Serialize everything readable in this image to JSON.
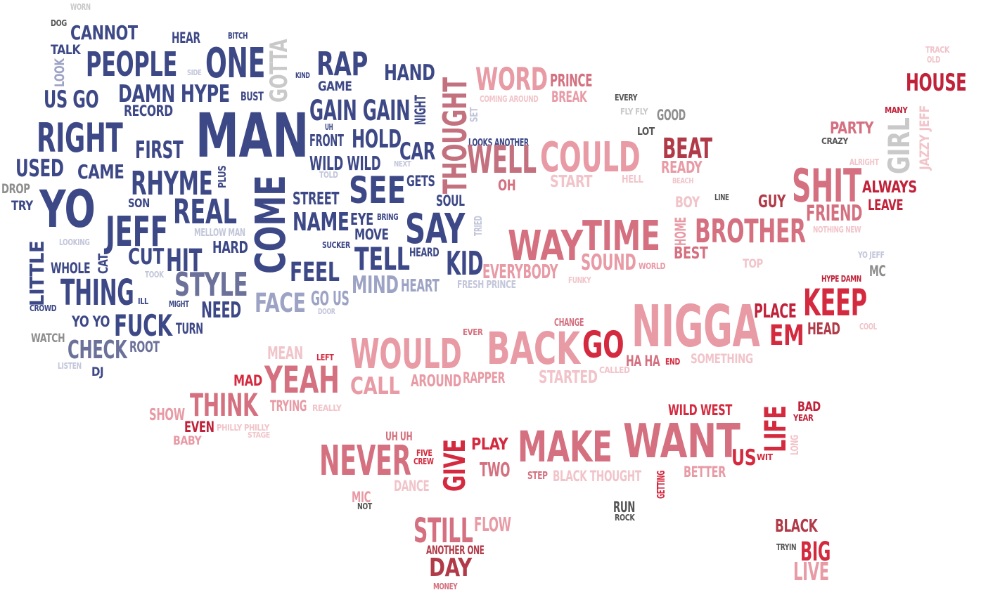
{
  "colors": {
    "navy": "#3d4886",
    "navy2": "#4a5590",
    "slate": "#6b7199",
    "lavender": "#9da3c4",
    "palelav": "#c3c6da",
    "gray": "#8e8e8e",
    "lightgray": "#c9c9c9",
    "darkgray": "#555555",
    "pink": "#e89aa5",
    "pink2": "#eaa3ad",
    "palepink": "#f1c4ca",
    "rose": "#d4707f",
    "mauve": "#c4717f",
    "red": "#d42a3f",
    "crimson": "#c0223a",
    "brick": "#b13a48"
  },
  "words": [
    {
      "text": "WORN",
      "c": "lightgray"
    },
    {
      "text": "DOG",
      "c": "darkgray"
    },
    {
      "text": "CANNOT",
      "c": "navy"
    },
    {
      "text": "TALK",
      "c": "navy"
    },
    {
      "text": "PEOPLE",
      "c": "navy"
    },
    {
      "text": "LOOK",
      "c": "lavender"
    },
    {
      "text": "US GO",
      "c": "navy"
    },
    {
      "text": "HEAR",
      "c": "navy"
    },
    {
      "text": "BITCH",
      "c": "navy"
    },
    {
      "text": "ONE",
      "c": "navy"
    },
    {
      "text": "GOTTA",
      "c": "lightgray"
    },
    {
      "text": "SIDE",
      "c": "palelav"
    },
    {
      "text": "KIND",
      "c": "navy"
    },
    {
      "text": "RAP",
      "c": "navy"
    },
    {
      "text": "GAME",
      "c": "navy"
    },
    {
      "text": "HAND",
      "c": "navy"
    },
    {
      "text": "DAMN HYPE",
      "c": "navy"
    },
    {
      "text": "BUST",
      "c": "navy"
    },
    {
      "text": "RECORD",
      "c": "navy"
    },
    {
      "text": "RIGHT",
      "c": "navy"
    },
    {
      "text": "MAN",
      "c": "navy"
    },
    {
      "text": "GAIN GAIN",
      "c": "navy"
    },
    {
      "text": "NIGHT",
      "c": "navy"
    },
    {
      "text": "THOUGHT",
      "c": "mauve"
    },
    {
      "text": "SET",
      "c": "palelav"
    },
    {
      "text": "WORD",
      "c": "pink"
    },
    {
      "text": "COMING AROUND",
      "c": "palepink"
    },
    {
      "text": "PRINCE",
      "c": "rose"
    },
    {
      "text": "BREAK",
      "c": "pink"
    },
    {
      "text": "EVERY",
      "c": "darkgray"
    },
    {
      "text": "FLY FLY",
      "c": "lightgray"
    },
    {
      "text": "GOOD",
      "c": "gray"
    },
    {
      "text": "TRACK",
      "c": "palepink"
    },
    {
      "text": "OLD",
      "c": "palepink"
    },
    {
      "text": "HOUSE",
      "c": "crimson"
    },
    {
      "text": "MANY",
      "c": "crimson"
    },
    {
      "text": "JAZZY JEFF",
      "c": "palepink"
    },
    {
      "text": "PARTY",
      "c": "rose"
    },
    {
      "text": "CRAZY",
      "c": "darkgray"
    },
    {
      "text": "GIRL",
      "c": "lightgray"
    },
    {
      "text": "ALRIGHT",
      "c": "palepink"
    },
    {
      "text": "FIRST",
      "c": "navy"
    },
    {
      "text": "UH",
      "c": "navy"
    },
    {
      "text": "FRONT",
      "c": "navy"
    },
    {
      "text": "HOLD",
      "c": "navy"
    },
    {
      "text": "LOOKS ANOTHER",
      "c": "navy"
    },
    {
      "text": "LOT",
      "c": "darkgray"
    },
    {
      "text": "USED",
      "c": "navy"
    },
    {
      "text": "CAME",
      "c": "navy"
    },
    {
      "text": "WILD WILD",
      "c": "navy"
    },
    {
      "text": "TOLD",
      "c": "palelav"
    },
    {
      "text": "CAR",
      "c": "navy"
    },
    {
      "text": "NEXT",
      "c": "palelav"
    },
    {
      "text": "WELL",
      "c": "mauve"
    },
    {
      "text": "COULD",
      "c": "pink"
    },
    {
      "text": "BEAT",
      "c": "brick"
    },
    {
      "text": "READY",
      "c": "pink"
    },
    {
      "text": "DROP",
      "c": "gray"
    },
    {
      "text": "TRY",
      "c": "navy"
    },
    {
      "text": "YO",
      "c": "navy"
    },
    {
      "text": "RHYME",
      "c": "navy"
    },
    {
      "text": "PLUS",
      "c": "navy"
    },
    {
      "text": "COME",
      "c": "navy"
    },
    {
      "text": "SEE",
      "c": "navy"
    },
    {
      "text": "GETS",
      "c": "navy"
    },
    {
      "text": "OH",
      "c": "rose"
    },
    {
      "text": "START",
      "c": "palepink"
    },
    {
      "text": "HELL",
      "c": "palepink"
    },
    {
      "text": "BEACH",
      "c": "palepink"
    },
    {
      "text": "SHIT",
      "c": "rose"
    },
    {
      "text": "ALWAYS",
      "c": "crimson"
    },
    {
      "text": "SON",
      "c": "navy"
    },
    {
      "text": "REAL",
      "c": "navy"
    },
    {
      "text": "STREET",
      "c": "navy"
    },
    {
      "text": "SOUL",
      "c": "navy"
    },
    {
      "text": "BOY",
      "c": "palepink"
    },
    {
      "text": "LINE",
      "c": "darkgray"
    },
    {
      "text": "GUY",
      "c": "brick"
    },
    {
      "text": "LEAVE",
      "c": "crimson"
    },
    {
      "text": "FRIEND",
      "c": "rose"
    },
    {
      "text": "JEFF",
      "c": "navy"
    },
    {
      "text": "MELLOW MAN",
      "c": "palelav"
    },
    {
      "text": "NAME",
      "c": "navy"
    },
    {
      "text": "EYE",
      "c": "navy"
    },
    {
      "text": "BRING",
      "c": "navy"
    },
    {
      "text": "SAY",
      "c": "navy"
    },
    {
      "text": "TRIED",
      "c": "palelav"
    },
    {
      "text": "HOME",
      "c": "pink"
    },
    {
      "text": "BROTHER",
      "c": "rose"
    },
    {
      "text": "NOTHING NEW",
      "c": "palepink"
    },
    {
      "text": "LITTLE",
      "c": "navy"
    },
    {
      "text": "LOOKING",
      "c": "palelav"
    },
    {
      "text": "CAT",
      "c": "navy"
    },
    {
      "text": "HARD",
      "c": "navy"
    },
    {
      "text": "MOVE",
      "c": "navy"
    },
    {
      "text": "SUCKER",
      "c": "navy"
    },
    {
      "text": "WAY",
      "c": "rose"
    },
    {
      "text": "TIME",
      "c": "rose"
    },
    {
      "text": "BEST",
      "c": "rose"
    },
    {
      "text": "WHOLE",
      "c": "navy"
    },
    {
      "text": "CUT",
      "c": "navy"
    },
    {
      "text": "HIT",
      "c": "navy"
    },
    {
      "text": "TOOK",
      "c": "palelav"
    },
    {
      "text": "FEEL",
      "c": "navy"
    },
    {
      "text": "TELL",
      "c": "navy"
    },
    {
      "text": "HEARD",
      "c": "navy"
    },
    {
      "text": "KID",
      "c": "navy"
    },
    {
      "text": "EVERYBODY",
      "c": "pink"
    },
    {
      "text": "SOUND",
      "c": "pink"
    },
    {
      "text": "WORLD",
      "c": "pink"
    },
    {
      "text": "TOP",
      "c": "palepink"
    },
    {
      "text": "YO JEFF",
      "c": "palelav"
    },
    {
      "text": "MC",
      "c": "gray"
    },
    {
      "text": "THING",
      "c": "navy"
    },
    {
      "text": "STYLE",
      "c": "slate"
    },
    {
      "text": "MIND",
      "c": "lavender"
    },
    {
      "text": "HEART",
      "c": "lavender"
    },
    {
      "text": "FRESH PRINCE",
      "c": "palelav"
    },
    {
      "text": "FUNKY",
      "c": "palepink"
    },
    {
      "text": "HYPE DAMN",
      "c": "crimson"
    },
    {
      "text": "CROWD",
      "c": "navy"
    },
    {
      "text": "ILL",
      "c": "navy"
    },
    {
      "text": "MIGHT",
      "c": "navy"
    },
    {
      "text": "NEED",
      "c": "navy"
    },
    {
      "text": "FACE",
      "c": "lavender"
    },
    {
      "text": "GO US",
      "c": "lavender"
    },
    {
      "text": "DOOR",
      "c": "palelav"
    },
    {
      "text": "KEEP",
      "c": "red"
    },
    {
      "text": "PLACE",
      "c": "crimson"
    },
    {
      "text": "NIGGA",
      "c": "pink"
    },
    {
      "text": "YO YO",
      "c": "navy"
    },
    {
      "text": "FUCK",
      "c": "navy"
    },
    {
      "text": "TURN",
      "c": "navy"
    },
    {
      "text": "CHANGE",
      "c": "rose"
    },
    {
      "text": "EM",
      "c": "red"
    },
    {
      "text": "HEAD",
      "c": "brick"
    },
    {
      "text": "COOL",
      "c": "palepink"
    },
    {
      "text": "WATCH",
      "c": "gray"
    },
    {
      "text": "EVER",
      "c": "rose"
    },
    {
      "text": "CHECK",
      "c": "slate"
    },
    {
      "text": "ROOT",
      "c": "slate"
    },
    {
      "text": "MEAN",
      "c": "palepink"
    },
    {
      "text": "BACK",
      "c": "pink"
    },
    {
      "text": "GO",
      "c": "red"
    },
    {
      "text": "LISTEN",
      "c": "palelav"
    },
    {
      "text": "LEFT",
      "c": "red"
    },
    {
      "text": "WOULD",
      "c": "pink"
    },
    {
      "text": "HA HA",
      "c": "rose"
    },
    {
      "text": "END",
      "c": "red"
    },
    {
      "text": "SOMETHING",
      "c": "palepink"
    },
    {
      "text": "DJ",
      "c": "navy"
    },
    {
      "text": "CALLED",
      "c": "palepink"
    },
    {
      "text": "MAD",
      "c": "red"
    },
    {
      "text": "YEAH",
      "c": "rose"
    },
    {
      "text": "CALL",
      "c": "pink"
    },
    {
      "text": "AROUND",
      "c": "pink"
    },
    {
      "text": "RAPPER",
      "c": "pink"
    },
    {
      "text": "STARTED",
      "c": "palepink"
    },
    {
      "text": "THINK",
      "c": "rose"
    },
    {
      "text": "TRYING",
      "c": "pink"
    },
    {
      "text": "REALLY",
      "c": "palepink"
    },
    {
      "text": "WILD WEST",
      "c": "red"
    },
    {
      "text": "BAD",
      "c": "crimson"
    },
    {
      "text": "YEAR",
      "c": "crimson"
    },
    {
      "text": "LIFE",
      "c": "red"
    },
    {
      "text": "SHOW",
      "c": "pink"
    },
    {
      "text": "EVEN",
      "c": "crimson"
    },
    {
      "text": "PHILLY PHILLY",
      "c": "palepink"
    },
    {
      "text": "STAGE",
      "c": "palepink"
    },
    {
      "text": "BABY",
      "c": "pink"
    },
    {
      "text": "UH UH",
      "c": "rose"
    },
    {
      "text": "WANT",
      "c": "rose"
    },
    {
      "text": "MAKE",
      "c": "rose"
    },
    {
      "text": "LONG",
      "c": "palepink"
    },
    {
      "text": "FIVE",
      "c": "red"
    },
    {
      "text": "CREW",
      "c": "red"
    },
    {
      "text": "PLAY",
      "c": "red"
    },
    {
      "text": "NEVER",
      "c": "rose"
    },
    {
      "text": "GIVE",
      "c": "red"
    },
    {
      "text": "US",
      "c": "red"
    },
    {
      "text": "WIT",
      "c": "red"
    },
    {
      "text": "TWO",
      "c": "rose"
    },
    {
      "text": "STEP",
      "c": "rose"
    },
    {
      "text": "BLACK THOUGHT",
      "c": "palepink"
    },
    {
      "text": "BETTER",
      "c": "pink"
    },
    {
      "text": "GETTING",
      "c": "red"
    },
    {
      "text": "DANCE",
      "c": "palepink"
    },
    {
      "text": "MIC",
      "c": "pink"
    },
    {
      "text": "NOT",
      "c": "darkgray"
    },
    {
      "text": "RUN",
      "c": "darkgray"
    },
    {
      "text": "ROCK",
      "c": "darkgray"
    },
    {
      "text": "STILL",
      "c": "rose"
    },
    {
      "text": "FLOW",
      "c": "pink"
    },
    {
      "text": "BLACK",
      "c": "brick"
    },
    {
      "text": "ANOTHER ONE",
      "c": "brick"
    },
    {
      "text": "TRYIN",
      "c": "darkgray"
    },
    {
      "text": "BIG",
      "c": "red"
    },
    {
      "text": "DAY",
      "c": "brick"
    },
    {
      "text": "LIVE",
      "c": "pink"
    },
    {
      "text": "MONEY",
      "c": "rose"
    }
  ]
}
